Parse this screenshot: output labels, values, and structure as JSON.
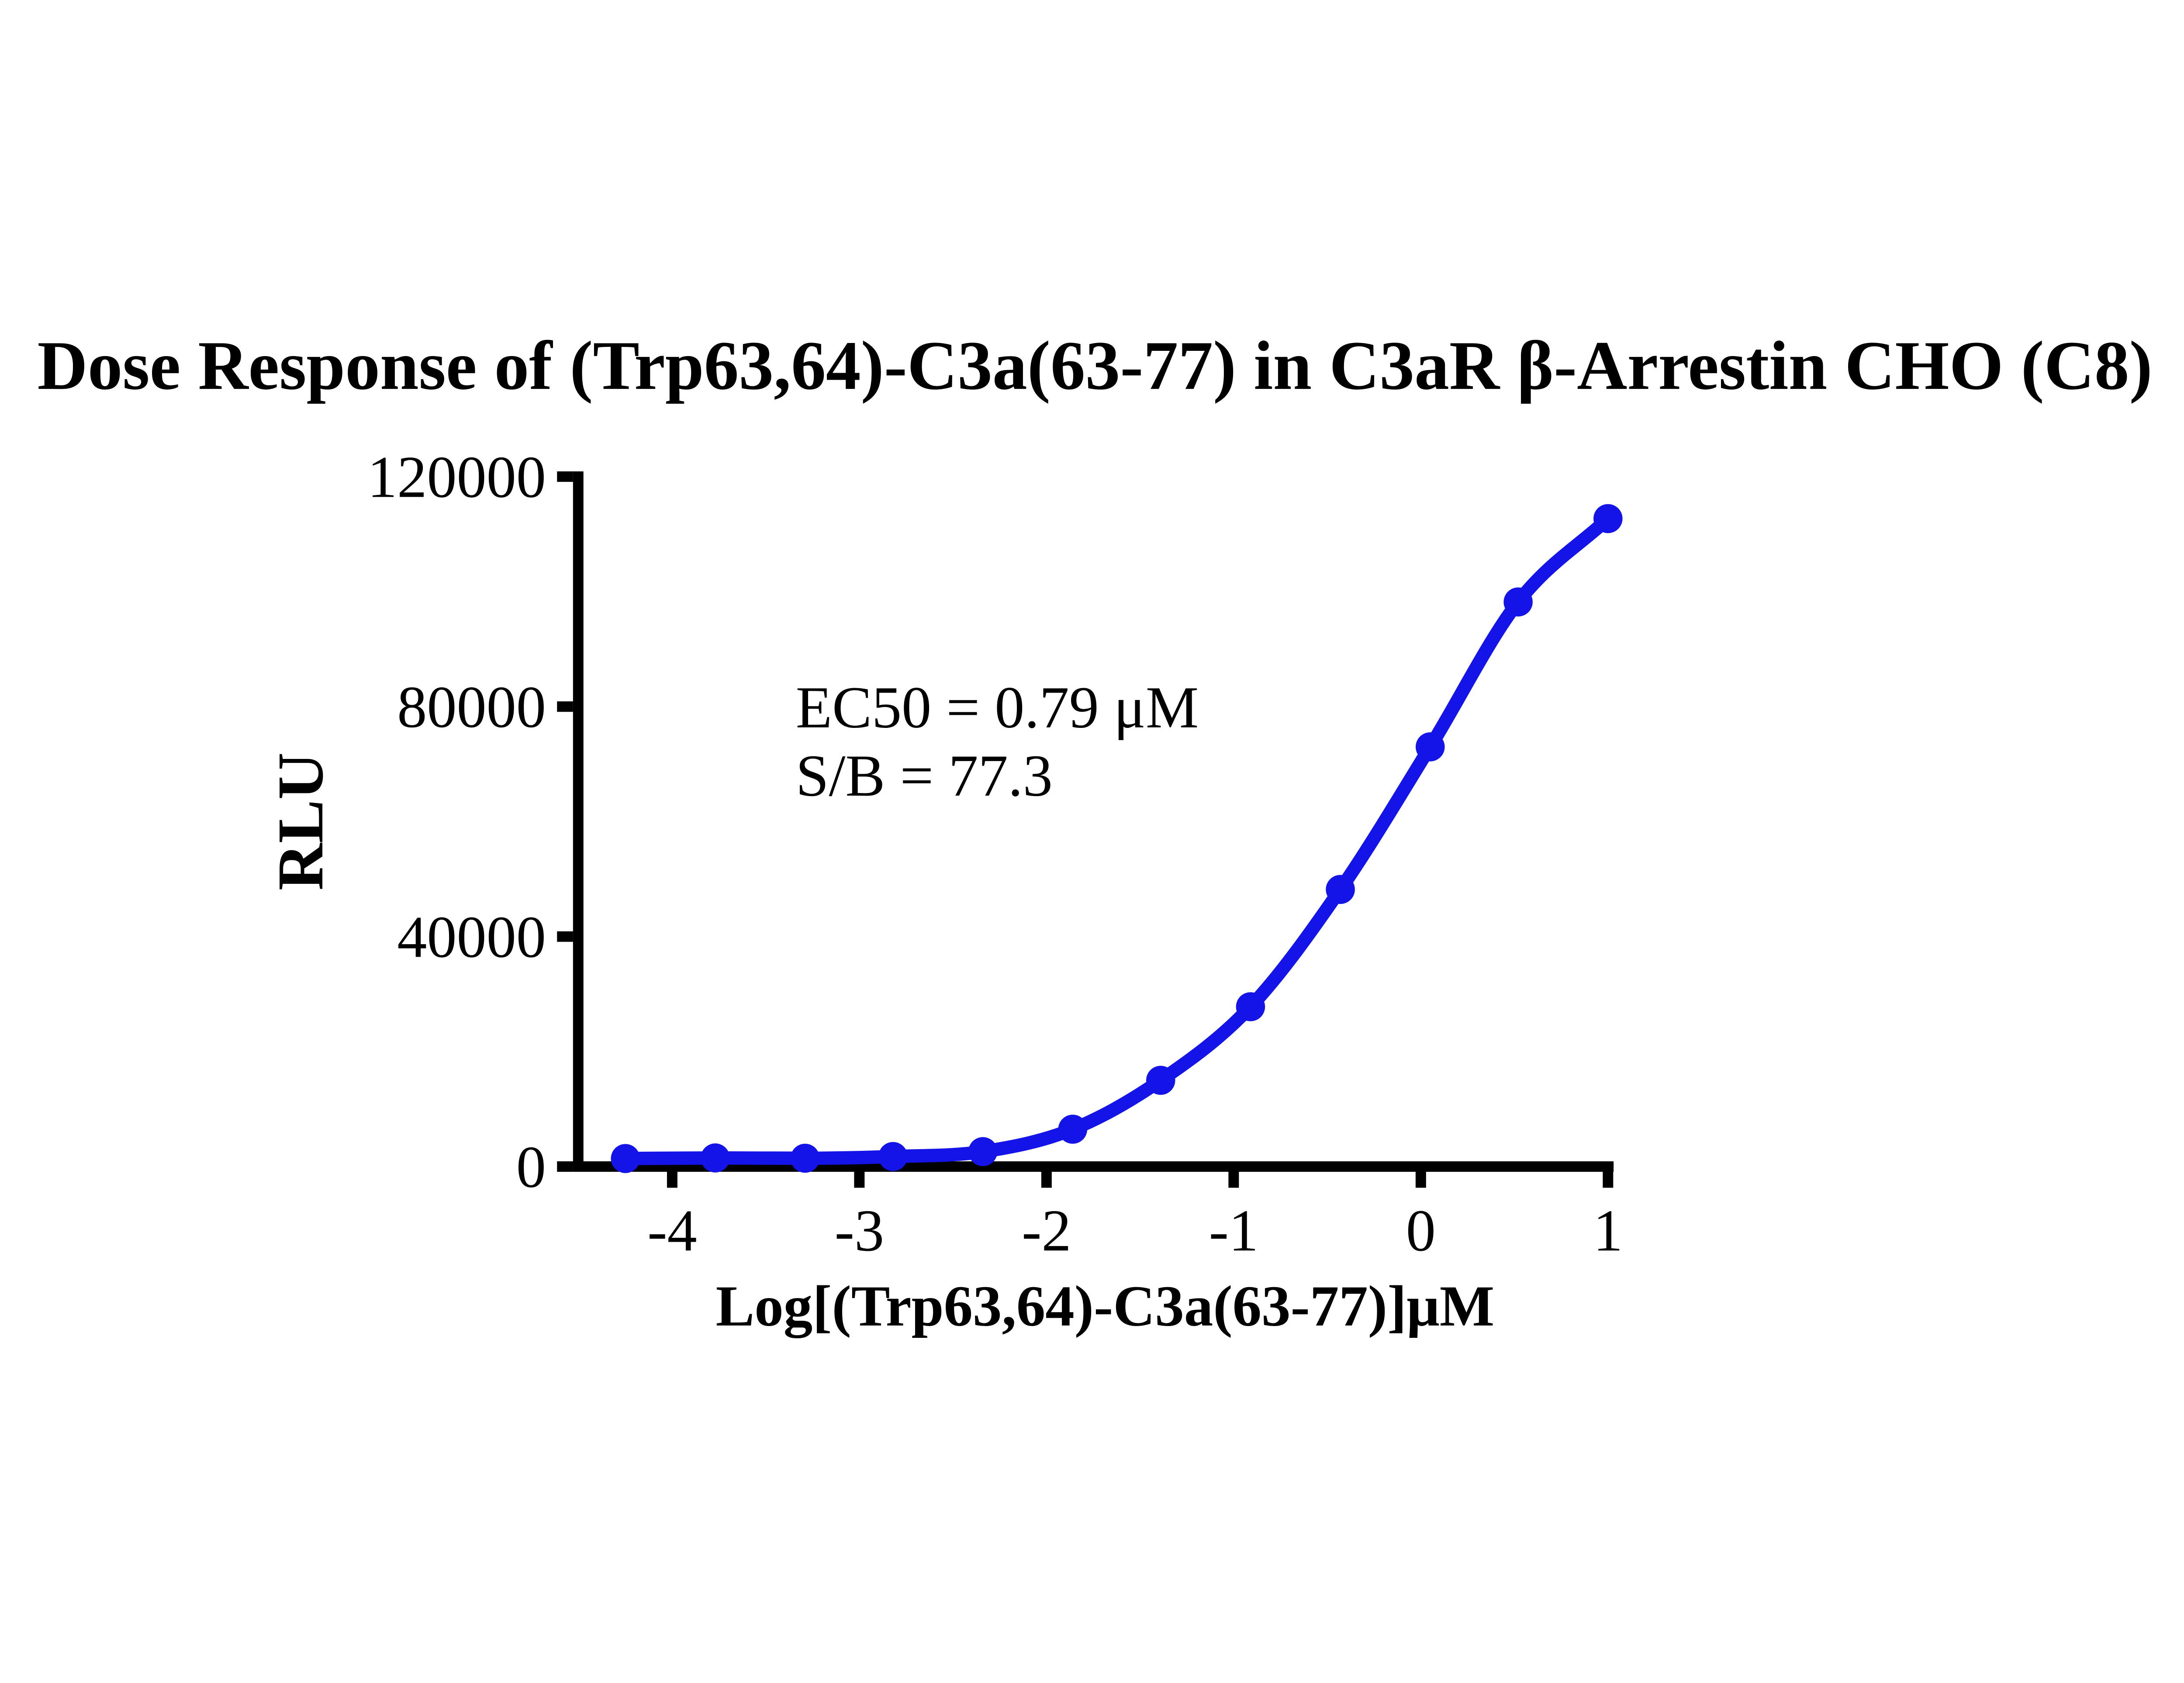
{
  "chart_data": {
    "type": "scatter",
    "fit": "sigmoidal dose-response curve",
    "title": "Dose Response of (Trp63,64)-C3a(63-77) in C3aR β-Arrestin CHO（C8）",
    "xlabel": "Log[(Trp63,64)-C3a(63-77)]μM",
    "ylabel": "RLU",
    "annotations": {
      "ec50": "EC50 = 0.79 μM",
      "sb": "S/B = 77.3"
    },
    "x": [
      -4.25,
      -3.77,
      -3.29,
      -2.82,
      -2.34,
      -1.86,
      -1.39,
      -0.91,
      -0.43,
      0.05,
      0.52,
      1.0
    ],
    "y": [
      1400,
      1500,
      1450,
      1750,
      2600,
      6500,
      15000,
      27800,
      48200,
      73000,
      98200,
      112700
    ],
    "x_ticks": [
      -4,
      -3,
      -2,
      -1,
      0,
      1
    ],
    "y_ticks": [
      0,
      40000,
      80000,
      120000
    ],
    "xlim": [
      -4.53,
      1.03
    ],
    "ylim": [
      0,
      120000
    ],
    "grid": false,
    "legend_position": "none",
    "series_color": "#1414e8",
    "axis_color": "#000000",
    "background_color": "#ffffff"
  }
}
